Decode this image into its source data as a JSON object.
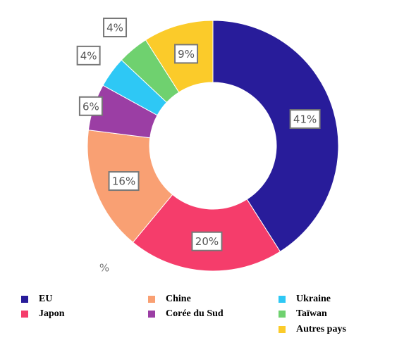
{
  "chart_data": {
    "type": "donut",
    "categories": [
      "EU",
      "Japon",
      "Chine",
      "Corée du Sud",
      "Ukraine",
      "Taïwan",
      "Autres pays"
    ],
    "values": [
      41,
      20,
      16,
      6,
      4,
      4,
      9
    ],
    "value_labels": [
      "41%",
      "20%",
      "16%",
      "6%",
      "4%",
      "4%",
      "9%"
    ],
    "colors": [
      "#281c9a",
      "#f53d6b",
      "#f9a073",
      "#9b3ea4",
      "#2ec8f5",
      "#6fd16f",
      "#fbcb2a"
    ],
    "unit_label": "%"
  }
}
